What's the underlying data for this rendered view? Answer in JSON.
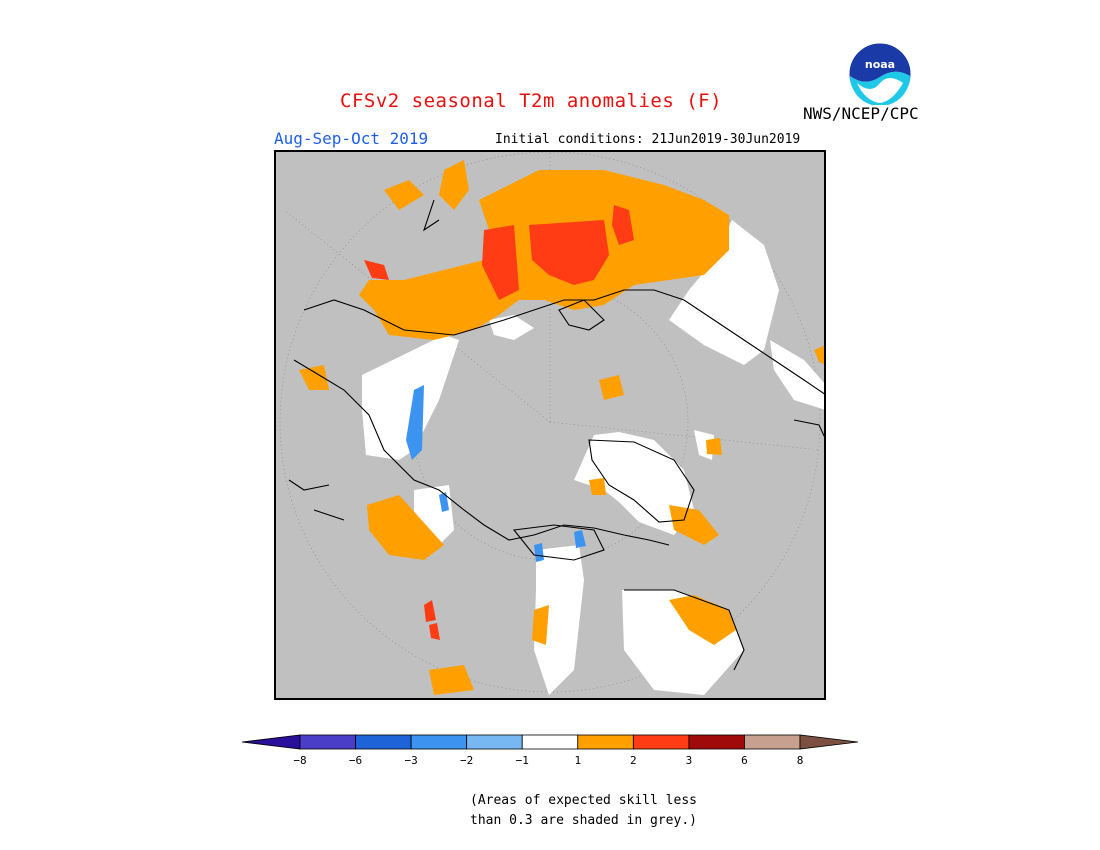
{
  "title": "CFSv2 seasonal T2m anomalies (F)",
  "period": "Aug-Sep-Oct 2019",
  "initial_conditions": "Initial conditions: 21Jun2019-30Jun2019",
  "agency": "NWS/NCEP/CPC",
  "logo": {
    "icon": "noaa-logo-icon",
    "text": "noaa"
  },
  "legend": {
    "colors": [
      "#2a0f9a",
      "#4a3ec8",
      "#1e64d8",
      "#3c94f0",
      "#78b8f2",
      "#ffffff",
      "#ffa000",
      "#ff3c14",
      "#a00a0a",
      "#c8a090",
      "#7b5040"
    ],
    "ticks": [
      "−8",
      "−6",
      "−3",
      "−2",
      "−1",
      "1",
      "2",
      "3",
      "6",
      "8"
    ]
  },
  "note": {
    "line1": "(Areas of expected skill less",
    "line2": "than 0.3 are shaded in grey.)"
  },
  "map": {
    "projection": "north-polar-stereographic",
    "background_color": "#c0c0c0",
    "regions": [
      {
        "name": "northern-europe-scandinavia",
        "class": "white"
      },
      {
        "name": "western-russia",
        "class": "1-2"
      },
      {
        "name": "central-siberia",
        "class": "2-3"
      },
      {
        "name": "eastern-siberia-kamchatka",
        "class": "1-2"
      },
      {
        "name": "alaska",
        "class": "1-2"
      },
      {
        "name": "western-canada",
        "class": "white"
      },
      {
        "name": "greenland",
        "class": "white"
      },
      {
        "name": "canadian-arctic-archipelago",
        "class": "white"
      }
    ]
  }
}
